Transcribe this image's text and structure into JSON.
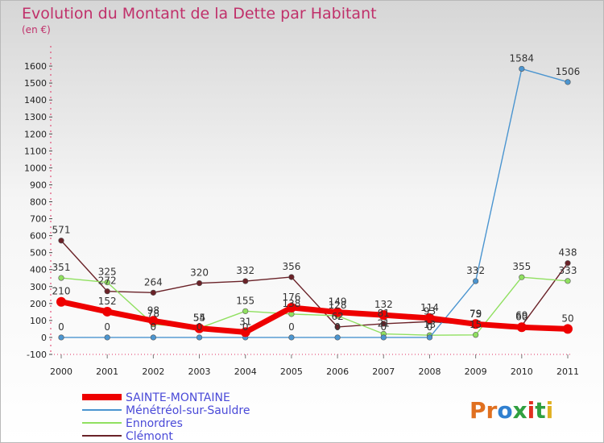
{
  "chart_data": {
    "type": "line",
    "title": "Evolution du Montant de la Dette par Habitant",
    "subtitle": "(en €)",
    "x": [
      "2000",
      "2001",
      "2002",
      "2003",
      "2004",
      "2005",
      "2006",
      "2007",
      "2008",
      "2009",
      "2010",
      "2011"
    ],
    "ylim": [
      -100,
      1700
    ],
    "yticks": [
      -100,
      0,
      100,
      200,
      300,
      400,
      500,
      600,
      700,
      800,
      900,
      1000,
      1100,
      1200,
      1300,
      1400,
      1500,
      1600
    ],
    "grid": false,
    "legend_position": "bottom-left",
    "series": [
      {
        "name": "SAINTE-MONTAINE",
        "color": "#ee0000",
        "values": [
          210,
          152,
          98,
          54,
          31,
          176,
          149,
          132,
          114,
          79,
          60,
          50
        ]
      },
      {
        "name": "Ménétréol-sur-Sauldre",
        "color": "#4b95d0",
        "values": [
          0,
          0,
          0,
          0,
          0,
          0,
          0,
          0,
          0,
          332,
          1584,
          1506
        ]
      },
      {
        "name": "Ennordres",
        "color": "#90e060",
        "values": [
          351,
          325,
          78,
          55,
          155,
          138,
          128,
          21,
          13,
          15,
          355,
          333
        ]
      },
      {
        "name": "Clémont",
        "color": "#6a2228",
        "values": [
          571,
          272,
          264,
          320,
          332,
          356,
          62,
          81,
          93,
          75,
          69,
          438
        ]
      }
    ]
  },
  "brand": {
    "text": "Proxiti"
  }
}
